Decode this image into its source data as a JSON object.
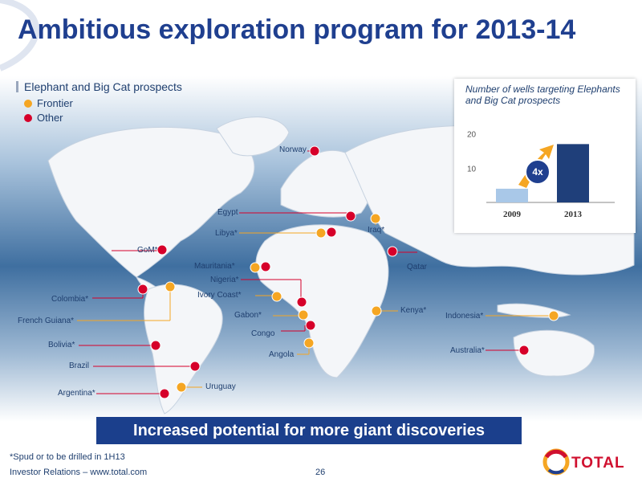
{
  "title": "Ambitious exploration program for 2013-14",
  "legend": {
    "title": "Elephant and Big Cat prospects",
    "frontier_label": "Frontier",
    "other_label": "Other",
    "frontier_color": "#f5a623",
    "other_color": "#d6002a"
  },
  "chart": {
    "caption": "Number of wells targeting Elephants and Big Cat prospects",
    "multiplier": "4x"
  },
  "chart_data": {
    "type": "bar",
    "categories": [
      "2009",
      "2013"
    ],
    "values": [
      4,
      17
    ],
    "yticks": [
      10,
      20
    ],
    "ylim": [
      0,
      22
    ],
    "annotation": "4x",
    "colors": [
      "#a9c8e8",
      "#1f3f7a"
    ]
  },
  "locations": [
    {
      "name": "Norway",
      "type": "other"
    },
    {
      "name": "Egypt",
      "type": "other"
    },
    {
      "name": "Libya*",
      "type": "frontier"
    },
    {
      "name": "Iraq*",
      "type": "frontier"
    },
    {
      "name": "Qatar",
      "type": "other"
    },
    {
      "name": "GoM*",
      "type": "other"
    },
    {
      "name": "Mauritania*",
      "type": "frontier"
    },
    {
      "name": "Nigeria*",
      "type": "other"
    },
    {
      "name": "Ivory Coast*",
      "type": "frontier"
    },
    {
      "name": "Gabon*",
      "type": "frontier"
    },
    {
      "name": "Congo",
      "type": "other"
    },
    {
      "name": "Angola",
      "type": "frontier"
    },
    {
      "name": "Kenya*",
      "type": "frontier"
    },
    {
      "name": "Indonesia*",
      "type": "frontier"
    },
    {
      "name": "Australia*",
      "type": "other"
    },
    {
      "name": "Colombia*",
      "type": "other"
    },
    {
      "name": "French Guiana*",
      "type": "frontier"
    },
    {
      "name": "Bolivia*",
      "type": "other"
    },
    {
      "name": "Brazil",
      "type": "other"
    },
    {
      "name": "Uruguay",
      "type": "frontier"
    },
    {
      "name": "Argentina*",
      "type": "other"
    }
  ],
  "banner": "Increased potential for more giant discoveries",
  "footnote": "*Spud or to be drilled in 1H13",
  "footer": {
    "left": "Investor Relations – www.total.com",
    "page_number": "26"
  },
  "logo": {
    "text": "TOTAL"
  }
}
